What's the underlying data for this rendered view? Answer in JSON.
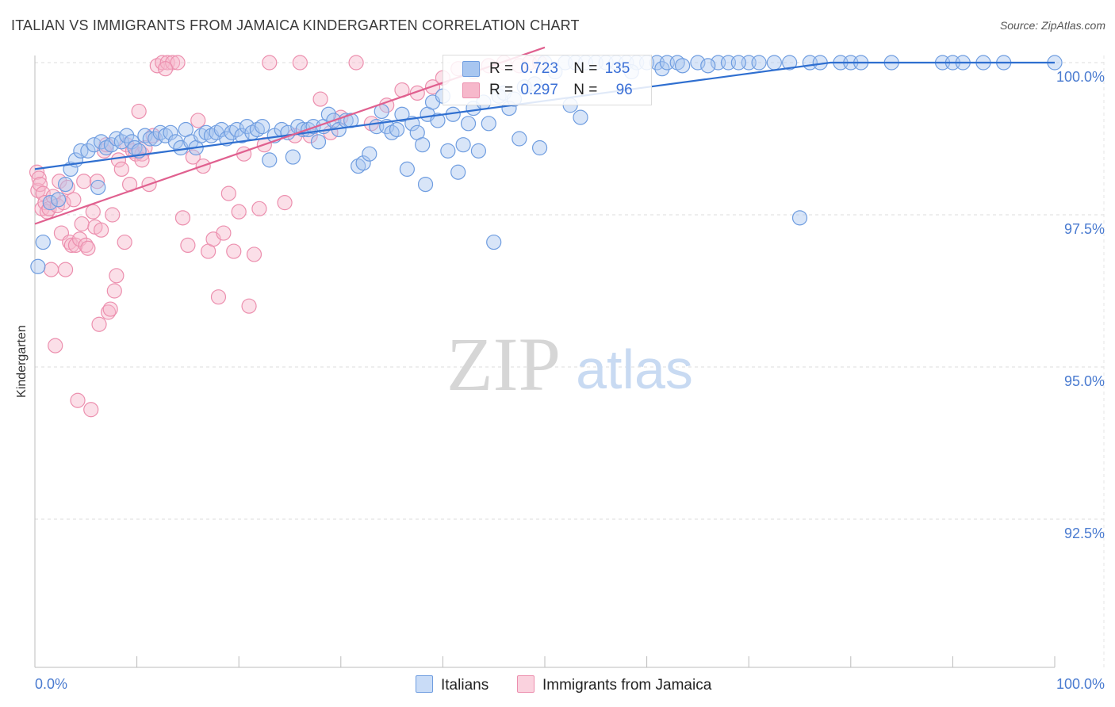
{
  "chart_data": {
    "type": "scatter",
    "title": "ITALIAN VS IMMIGRANTS FROM JAMAICA KINDERGARTEN CORRELATION CHART",
    "source": "Source: ZipAtlas.com",
    "xlabel": "",
    "ylabel": "Kindergarten",
    "xlim": [
      0,
      100
    ],
    "ylim": [
      90.2,
      100.25
    ],
    "x_tick_labels": {
      "left": "0.0%",
      "right": "100.0%"
    },
    "y_ticks": [
      {
        "value": 100.0,
        "label": "100.0%"
      },
      {
        "value": 97.5,
        "label": "97.5%"
      },
      {
        "value": 95.0,
        "label": "95.0%"
      },
      {
        "value": 92.5,
        "label": "92.5%"
      }
    ],
    "grid": true,
    "watermark": {
      "zip": "ZIP",
      "atlas": "atlas"
    },
    "legend": {
      "r_label": "R =",
      "n_label": "N =",
      "entries": [
        {
          "name": "Italians",
          "r": "0.723",
          "n": "135"
        },
        {
          "name": "Immigrants from Jamaica",
          "r": "0.297",
          "n": "96"
        }
      ]
    },
    "colors": {
      "italians_fill": "#a8c6f0",
      "italians_stroke": "#6f9de0",
      "italians_line": "#2f6fd0",
      "jamaica_fill": "#f6b8cb",
      "jamaica_stroke": "#ec8fae",
      "jamaica_line": "#e0608f",
      "tick_label": "#4a7bd0"
    },
    "series": [
      {
        "name": "Italians",
        "trend": [
          [
            0,
            98.25
          ],
          [
            78,
            100.0
          ],
          [
            100,
            100.0
          ]
        ],
        "points": [
          [
            0.3,
            96.65
          ],
          [
            0.8,
            97.05
          ],
          [
            1.5,
            97.7
          ],
          [
            2.3,
            97.75
          ],
          [
            3.0,
            98.0
          ],
          [
            3.5,
            98.25
          ],
          [
            4.0,
            98.4
          ],
          [
            4.5,
            98.55
          ],
          [
            5.2,
            98.55
          ],
          [
            5.8,
            98.65
          ],
          [
            6.2,
            97.95
          ],
          [
            6.5,
            98.7
          ],
          [
            7.0,
            98.6
          ],
          [
            7.5,
            98.65
          ],
          [
            8.0,
            98.75
          ],
          [
            8.5,
            98.7
          ],
          [
            9.0,
            98.8
          ],
          [
            9.5,
            98.7
          ],
          [
            9.8,
            98.6
          ],
          [
            10.2,
            98.55
          ],
          [
            10.8,
            98.8
          ],
          [
            11.3,
            98.75
          ],
          [
            11.8,
            98.75
          ],
          [
            12.3,
            98.85
          ],
          [
            12.8,
            98.8
          ],
          [
            13.3,
            98.85
          ],
          [
            13.8,
            98.7
          ],
          [
            14.3,
            98.6
          ],
          [
            14.8,
            98.9
          ],
          [
            15.3,
            98.7
          ],
          [
            15.8,
            98.6
          ],
          [
            16.3,
            98.8
          ],
          [
            16.8,
            98.85
          ],
          [
            17.3,
            98.8
          ],
          [
            17.8,
            98.85
          ],
          [
            18.3,
            98.9
          ],
          [
            18.8,
            98.75
          ],
          [
            19.3,
            98.85
          ],
          [
            19.8,
            98.9
          ],
          [
            20.3,
            98.8
          ],
          [
            20.8,
            98.95
          ],
          [
            21.3,
            98.85
          ],
          [
            21.8,
            98.9
          ],
          [
            22.3,
            98.95
          ],
          [
            23.0,
            98.4
          ],
          [
            23.5,
            98.8
          ],
          [
            24.2,
            98.9
          ],
          [
            24.8,
            98.85
          ],
          [
            25.3,
            98.45
          ],
          [
            25.8,
            98.95
          ],
          [
            26.3,
            98.9
          ],
          [
            26.8,
            98.9
          ],
          [
            27.3,
            98.95
          ],
          [
            27.8,
            98.7
          ],
          [
            28.3,
            98.95
          ],
          [
            28.8,
            99.15
          ],
          [
            29.3,
            99.05
          ],
          [
            29.8,
            98.9
          ],
          [
            30.5,
            99.05
          ],
          [
            31.0,
            99.05
          ],
          [
            31.7,
            98.3
          ],
          [
            32.2,
            98.35
          ],
          [
            32.8,
            98.5
          ],
          [
            33.5,
            98.95
          ],
          [
            34.0,
            99.2
          ],
          [
            34.5,
            98.95
          ],
          [
            35.0,
            98.85
          ],
          [
            35.5,
            98.9
          ],
          [
            36.0,
            99.15
          ],
          [
            36.5,
            98.25
          ],
          [
            37.0,
            99.0
          ],
          [
            37.5,
            98.85
          ],
          [
            38.0,
            98.65
          ],
          [
            38.5,
            99.15
          ],
          [
            39.0,
            99.35
          ],
          [
            39.5,
            99.05
          ],
          [
            40.0,
            99.45
          ],
          [
            40.5,
            98.55
          ],
          [
            41.0,
            99.15
          ],
          [
            41.5,
            98.2
          ],
          [
            42.0,
            98.65
          ],
          [
            42.5,
            99.0
          ],
          [
            43.0,
            99.25
          ],
          [
            43.5,
            98.55
          ],
          [
            44.0,
            99.35
          ],
          [
            44.5,
            99.0
          ],
          [
            45.0,
            97.05
          ],
          [
            45.5,
            99.45
          ],
          [
            46.0,
            99.5
          ],
          [
            46.5,
            99.25
          ],
          [
            47.0,
            99.4
          ],
          [
            48.0,
            99.6
          ],
          [
            49.0,
            99.65
          ],
          [
            50.0,
            100.0
          ],
          [
            51.0,
            99.85
          ],
          [
            52.0,
            100.0
          ],
          [
            53.0,
            100.0
          ],
          [
            54.0,
            100.0
          ],
          [
            55.0,
            100.0
          ],
          [
            56.0,
            100.0
          ],
          [
            57.0,
            100.0
          ],
          [
            58.0,
            100.0
          ],
          [
            59.0,
            100.0
          ],
          [
            60.0,
            100.0
          ],
          [
            61.0,
            100.0
          ],
          [
            61.5,
            99.9
          ],
          [
            62.0,
            100.0
          ],
          [
            63.0,
            100.0
          ],
          [
            65.0,
            100.0
          ],
          [
            67.0,
            100.0
          ],
          [
            68.0,
            100.0
          ],
          [
            70.0,
            100.0
          ],
          [
            71.0,
            100.0
          ],
          [
            72.5,
            100.0
          ],
          [
            74.0,
            100.0
          ],
          [
            75.0,
            97.45
          ],
          [
            76.0,
            100.0
          ],
          [
            79.0,
            100.0
          ],
          [
            80.0,
            100.0
          ],
          [
            81.0,
            100.0
          ],
          [
            84.0,
            100.0
          ],
          [
            89.0,
            100.0
          ],
          [
            90.0,
            100.0
          ],
          [
            91.0,
            100.0
          ],
          [
            93.0,
            100.0
          ],
          [
            95.0,
            100.0
          ],
          [
            100.0,
            100.0
          ],
          [
            49.5,
            98.6
          ],
          [
            52.5,
            99.3
          ],
          [
            53.5,
            99.1
          ],
          [
            47.5,
            98.75
          ],
          [
            38.3,
            98.0
          ],
          [
            58.5,
            99.85
          ],
          [
            63.5,
            99.95
          ],
          [
            66.0,
            99.95
          ],
          [
            69.0,
            100.0
          ],
          [
            77.0,
            100.0
          ]
        ]
      },
      {
        "name": "Immigrants from Jamaica",
        "trend": [
          [
            0,
            97.35
          ],
          [
            50,
            100.25
          ]
        ],
        "points": [
          [
            0.2,
            98.2
          ],
          [
            0.3,
            97.9
          ],
          [
            0.4,
            98.1
          ],
          [
            0.5,
            98.0
          ],
          [
            0.7,
            97.6
          ],
          [
            0.8,
            97.85
          ],
          [
            1.0,
            97.7
          ],
          [
            1.2,
            97.55
          ],
          [
            1.4,
            97.6
          ],
          [
            1.6,
            96.6
          ],
          [
            1.8,
            97.8
          ],
          [
            2.0,
            95.35
          ],
          [
            2.2,
            97.65
          ],
          [
            2.4,
            98.05
          ],
          [
            2.6,
            97.2
          ],
          [
            2.8,
            97.7
          ],
          [
            3.0,
            96.6
          ],
          [
            3.2,
            97.95
          ],
          [
            3.4,
            97.05
          ],
          [
            3.6,
            97.0
          ],
          [
            3.8,
            97.75
          ],
          [
            4.0,
            97.0
          ],
          [
            4.2,
            94.45
          ],
          [
            4.4,
            97.1
          ],
          [
            4.6,
            97.35
          ],
          [
            4.8,
            98.05
          ],
          [
            5.0,
            97.0
          ],
          [
            5.2,
            96.95
          ],
          [
            5.5,
            94.3
          ],
          [
            5.7,
            97.55
          ],
          [
            5.9,
            97.3
          ],
          [
            6.1,
            98.05
          ],
          [
            6.3,
            95.7
          ],
          [
            6.5,
            97.25
          ],
          [
            6.8,
            98.55
          ],
          [
            7.0,
            98.65
          ],
          [
            7.2,
            95.9
          ],
          [
            7.4,
            95.95
          ],
          [
            7.6,
            97.5
          ],
          [
            7.8,
            96.25
          ],
          [
            8.0,
            96.5
          ],
          [
            8.2,
            98.4
          ],
          [
            8.5,
            98.25
          ],
          [
            8.8,
            97.05
          ],
          [
            9.0,
            98.65
          ],
          [
            9.3,
            98.0
          ],
          [
            9.6,
            98.55
          ],
          [
            9.9,
            98.5
          ],
          [
            10.2,
            99.2
          ],
          [
            10.5,
            98.5
          ],
          [
            10.8,
            98.6
          ],
          [
            11.2,
            98.0
          ],
          [
            11.6,
            98.8
          ],
          [
            12.0,
            99.95
          ],
          [
            12.5,
            100.0
          ],
          [
            13.0,
            100.0
          ],
          [
            13.5,
            100.0
          ],
          [
            14.0,
            100.0
          ],
          [
            14.5,
            97.45
          ],
          [
            15.0,
            97.0
          ],
          [
            15.5,
            98.45
          ],
          [
            16.0,
            99.05
          ],
          [
            16.5,
            98.3
          ],
          [
            17.0,
            96.9
          ],
          [
            17.5,
            97.1
          ],
          [
            18.0,
            96.15
          ],
          [
            18.5,
            97.2
          ],
          [
            19.0,
            97.85
          ],
          [
            19.5,
            96.9
          ],
          [
            20.0,
            97.55
          ],
          [
            20.5,
            98.5
          ],
          [
            21.0,
            96.0
          ],
          [
            21.5,
            96.85
          ],
          [
            22.0,
            97.6
          ],
          [
            22.5,
            98.65
          ],
          [
            23.0,
            100.0
          ],
          [
            24.5,
            97.7
          ],
          [
            25.5,
            98.8
          ],
          [
            26.0,
            100.0
          ],
          [
            27.0,
            98.8
          ],
          [
            28.0,
            99.4
          ],
          [
            29.0,
            98.85
          ],
          [
            30.0,
            99.1
          ],
          [
            31.5,
            100.0
          ],
          [
            33.0,
            99.0
          ],
          [
            34.5,
            99.3
          ],
          [
            36.0,
            99.55
          ],
          [
            37.5,
            99.5
          ],
          [
            39.0,
            99.6
          ],
          [
            40.0,
            99.75
          ],
          [
            41.5,
            99.9
          ],
          [
            43.0,
            99.85
          ],
          [
            44.5,
            99.95
          ],
          [
            46.0,
            100.0
          ],
          [
            47.5,
            99.95
          ],
          [
            48.5,
            100.0
          ],
          [
            49.5,
            100.0
          ],
          [
            12.8,
            99.9
          ],
          [
            10.5,
            98.4
          ]
        ]
      }
    ]
  }
}
